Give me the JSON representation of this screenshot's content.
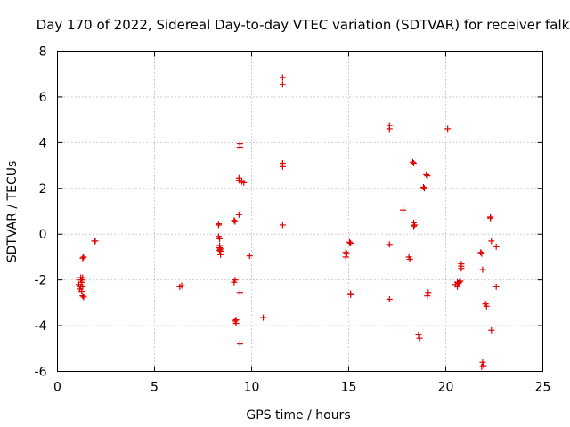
{
  "chart_data": {
    "type": "scatter",
    "title": "Day 170 of 2022, Sidereal Day-to-day VTEC variation (SDTVAR) for receiver falk",
    "xlabel": "GPS time / hours",
    "ylabel": "SDTVAR / TECUs",
    "xlim": [
      0,
      25
    ],
    "ylim": [
      -6,
      8
    ],
    "xticks": [
      0,
      5,
      10,
      15,
      20,
      25
    ],
    "xtick_labels": [
      "0",
      "5",
      "10",
      "15",
      "20",
      "25"
    ],
    "yticks": [
      -6,
      -4,
      -2,
      0,
      2,
      4,
      6,
      8
    ],
    "ytick_labels": [
      "-6",
      "-4",
      "-2",
      "0",
      "2",
      "4",
      "6",
      "8"
    ],
    "grid": true,
    "marker": "+",
    "color": "#e00000",
    "series": [
      {
        "name": "SDTVAR",
        "x": [
          1.1,
          1.15,
          1.2,
          1.2,
          1.25,
          1.25,
          1.3,
          1.3,
          1.3,
          1.35,
          1.35,
          1.2,
          1.3,
          1.25,
          1.9,
          1.95,
          6.3,
          6.4,
          8.3,
          8.3,
          8.3,
          8.35,
          8.35,
          8.35,
          8.4,
          8.4,
          8.35,
          8.4,
          9.1,
          9.15,
          9.15,
          9.1,
          9.15,
          9.2,
          9.2,
          9.35,
          9.35,
          9.35,
          9.4,
          9.4,
          9.4,
          9.4,
          9.5,
          9.6,
          9.9,
          10.6,
          11.6,
          11.6,
          11.6,
          11.6,
          11.6,
          14.85,
          14.85,
          14.9,
          15.05,
          15.1,
          15.1,
          15.1,
          17.1,
          17.1,
          17.1,
          17.1,
          17.8,
          18.1,
          18.15,
          18.3,
          18.35,
          18.35,
          18.4,
          18.35,
          18.6,
          18.65,
          18.85,
          18.9,
          19.0,
          19.05,
          19.1,
          19.05,
          20.1,
          20.5,
          20.6,
          20.6,
          20.65,
          20.7,
          20.75,
          20.8,
          20.8,
          20.8,
          21.8,
          21.85,
          21.9,
          21.9,
          21.95,
          21.85,
          22.05,
          22.1,
          22.3,
          22.3,
          22.35,
          22.35,
          22.6,
          22.6
        ],
        "y": [
          -2.2,
          -2.4,
          -2.0,
          -1.9,
          -2.5,
          -2.1,
          -1.9,
          -2.7,
          -1.05,
          -1.0,
          -2.75,
          -2.3,
          -2.3,
          -2.0,
          -0.3,
          -0.3,
          -2.3,
          -2.25,
          0.45,
          0.4,
          -0.1,
          -0.5,
          -0.6,
          -0.7,
          -0.75,
          -0.9,
          -0.2,
          -0.65,
          0.6,
          0.55,
          -2.0,
          -2.1,
          -3.8,
          -3.9,
          -3.75,
          0.85,
          2.45,
          2.35,
          3.95,
          3.8,
          -2.55,
          -4.8,
          2.3,
          2.25,
          -0.95,
          -3.65,
          6.85,
          6.55,
          3.1,
          2.95,
          0.4,
          -0.8,
          -1.0,
          -0.85,
          -0.35,
          -0.4,
          -2.6,
          -2.65,
          4.75,
          4.6,
          -0.45,
          -2.85,
          1.05,
          -1.0,
          -1.1,
          3.15,
          3.1,
          0.5,
          0.4,
          0.35,
          -4.4,
          -4.55,
          2.05,
          2.0,
          2.6,
          2.55,
          -2.55,
          -2.7,
          4.6,
          -2.2,
          -2.1,
          -2.3,
          -2.15,
          -2.1,
          -2.05,
          -1.3,
          -1.4,
          -1.5,
          -0.8,
          -0.85,
          -1.55,
          -5.6,
          -5.75,
          -5.8,
          -3.05,
          -3.15,
          0.75,
          0.7,
          -0.3,
          -4.2,
          -0.55,
          -2.3
        ]
      }
    ]
  }
}
